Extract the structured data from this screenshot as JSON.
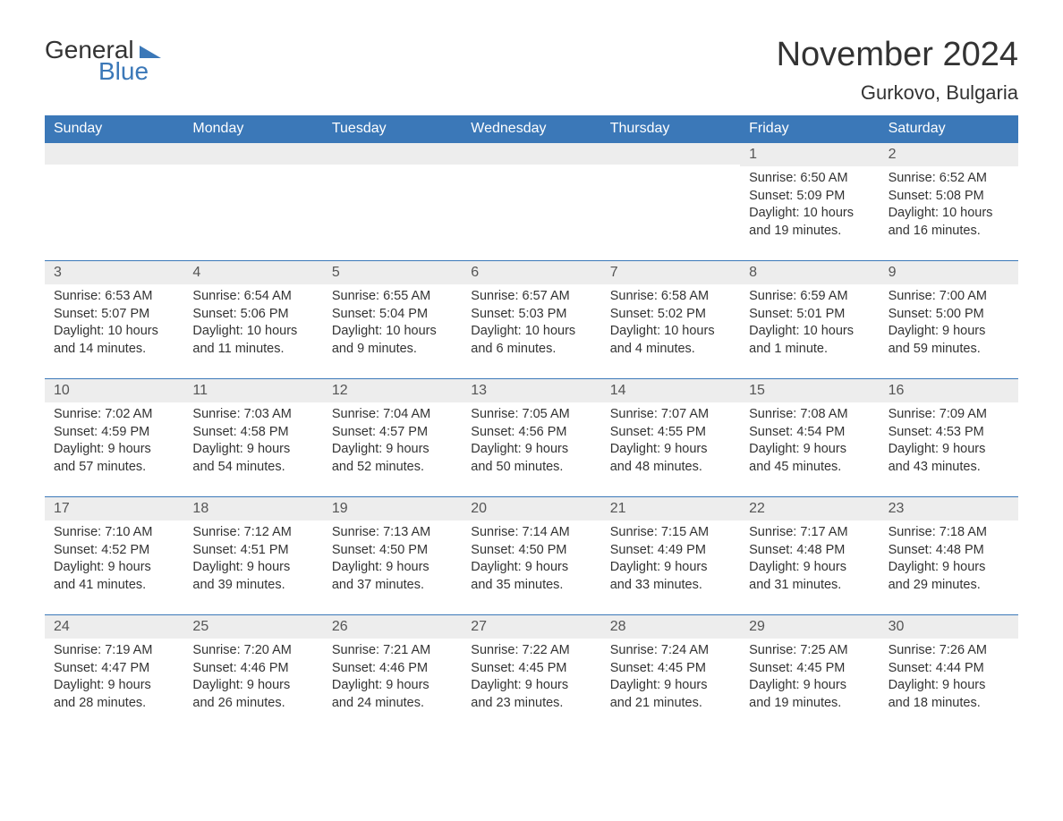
{
  "brand": {
    "word1": "General",
    "word2": "Blue",
    "word1_color": "#333333",
    "word2_color": "#3b78b8"
  },
  "title": "November 2024",
  "location": "Gurkovo, Bulgaria",
  "colors": {
    "header_bg": "#3b78b8",
    "header_text": "#ffffff",
    "daynum_bg": "#ededed",
    "body_text": "#333333",
    "page_bg": "#ffffff",
    "row_border": "#3b78b8"
  },
  "typography": {
    "title_fontsize": 38,
    "location_fontsize": 22,
    "weekday_fontsize": 16,
    "daynum_fontsize": 16,
    "body_fontsize": 14.5
  },
  "weekdays": [
    "Sunday",
    "Monday",
    "Tuesday",
    "Wednesday",
    "Thursday",
    "Friday",
    "Saturday"
  ],
  "weeks": [
    [
      null,
      null,
      null,
      null,
      null,
      {
        "n": "1",
        "sunrise": "6:50 AM",
        "sunset": "5:09 PM",
        "daylight": "10 hours and 19 minutes."
      },
      {
        "n": "2",
        "sunrise": "6:52 AM",
        "sunset": "5:08 PM",
        "daylight": "10 hours and 16 minutes."
      }
    ],
    [
      {
        "n": "3",
        "sunrise": "6:53 AM",
        "sunset": "5:07 PM",
        "daylight": "10 hours and 14 minutes."
      },
      {
        "n": "4",
        "sunrise": "6:54 AM",
        "sunset": "5:06 PM",
        "daylight": "10 hours and 11 minutes."
      },
      {
        "n": "5",
        "sunrise": "6:55 AM",
        "sunset": "5:04 PM",
        "daylight": "10 hours and 9 minutes."
      },
      {
        "n": "6",
        "sunrise": "6:57 AM",
        "sunset": "5:03 PM",
        "daylight": "10 hours and 6 minutes."
      },
      {
        "n": "7",
        "sunrise": "6:58 AM",
        "sunset": "5:02 PM",
        "daylight": "10 hours and 4 minutes."
      },
      {
        "n": "8",
        "sunrise": "6:59 AM",
        "sunset": "5:01 PM",
        "daylight": "10 hours and 1 minute."
      },
      {
        "n": "9",
        "sunrise": "7:00 AM",
        "sunset": "5:00 PM",
        "daylight": "9 hours and 59 minutes."
      }
    ],
    [
      {
        "n": "10",
        "sunrise": "7:02 AM",
        "sunset": "4:59 PM",
        "daylight": "9 hours and 57 minutes."
      },
      {
        "n": "11",
        "sunrise": "7:03 AM",
        "sunset": "4:58 PM",
        "daylight": "9 hours and 54 minutes."
      },
      {
        "n": "12",
        "sunrise": "7:04 AM",
        "sunset": "4:57 PM",
        "daylight": "9 hours and 52 minutes."
      },
      {
        "n": "13",
        "sunrise": "7:05 AM",
        "sunset": "4:56 PM",
        "daylight": "9 hours and 50 minutes."
      },
      {
        "n": "14",
        "sunrise": "7:07 AM",
        "sunset": "4:55 PM",
        "daylight": "9 hours and 48 minutes."
      },
      {
        "n": "15",
        "sunrise": "7:08 AM",
        "sunset": "4:54 PM",
        "daylight": "9 hours and 45 minutes."
      },
      {
        "n": "16",
        "sunrise": "7:09 AM",
        "sunset": "4:53 PM",
        "daylight": "9 hours and 43 minutes."
      }
    ],
    [
      {
        "n": "17",
        "sunrise": "7:10 AM",
        "sunset": "4:52 PM",
        "daylight": "9 hours and 41 minutes."
      },
      {
        "n": "18",
        "sunrise": "7:12 AM",
        "sunset": "4:51 PM",
        "daylight": "9 hours and 39 minutes."
      },
      {
        "n": "19",
        "sunrise": "7:13 AM",
        "sunset": "4:50 PM",
        "daylight": "9 hours and 37 minutes."
      },
      {
        "n": "20",
        "sunrise": "7:14 AM",
        "sunset": "4:50 PM",
        "daylight": "9 hours and 35 minutes."
      },
      {
        "n": "21",
        "sunrise": "7:15 AM",
        "sunset": "4:49 PM",
        "daylight": "9 hours and 33 minutes."
      },
      {
        "n": "22",
        "sunrise": "7:17 AM",
        "sunset": "4:48 PM",
        "daylight": "9 hours and 31 minutes."
      },
      {
        "n": "23",
        "sunrise": "7:18 AM",
        "sunset": "4:48 PM",
        "daylight": "9 hours and 29 minutes."
      }
    ],
    [
      {
        "n": "24",
        "sunrise": "7:19 AM",
        "sunset": "4:47 PM",
        "daylight": "9 hours and 28 minutes."
      },
      {
        "n": "25",
        "sunrise": "7:20 AM",
        "sunset": "4:46 PM",
        "daylight": "9 hours and 26 minutes."
      },
      {
        "n": "26",
        "sunrise": "7:21 AM",
        "sunset": "4:46 PM",
        "daylight": "9 hours and 24 minutes."
      },
      {
        "n": "27",
        "sunrise": "7:22 AM",
        "sunset": "4:45 PM",
        "daylight": "9 hours and 23 minutes."
      },
      {
        "n": "28",
        "sunrise": "7:24 AM",
        "sunset": "4:45 PM",
        "daylight": "9 hours and 21 minutes."
      },
      {
        "n": "29",
        "sunrise": "7:25 AM",
        "sunset": "4:45 PM",
        "daylight": "9 hours and 19 minutes."
      },
      {
        "n": "30",
        "sunrise": "7:26 AM",
        "sunset": "4:44 PM",
        "daylight": "9 hours and 18 minutes."
      }
    ]
  ],
  "labels": {
    "sunrise": "Sunrise: ",
    "sunset": "Sunset: ",
    "daylight": "Daylight: "
  }
}
